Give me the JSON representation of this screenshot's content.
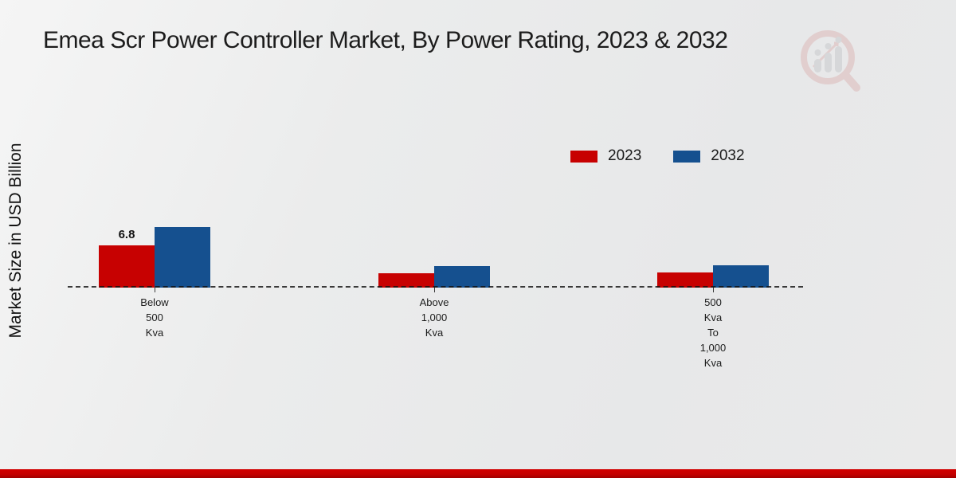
{
  "title": "Emea Scr Power Controller Market, By Power Rating, 2023 & 2032",
  "watermark_icon": "magnifier-bar-chart-logo-icon",
  "chart_data": {
    "type": "bar",
    "title": "Emea Scr Power Controller Market, By Power Rating, 2023 & 2032",
    "xlabel": "",
    "ylabel": "Market Size in USD Billion",
    "categories": [
      "Below 500 Kva",
      "Above 1,000 Kva",
      "500 Kva To 1,000 Kva"
    ],
    "category_display_lines": [
      [
        "Below",
        "500",
        "Kva"
      ],
      [
        "Above",
        "1,000",
        "Kva"
      ],
      [
        "500",
        "Kva",
        "To",
        "1,000",
        "Kva"
      ]
    ],
    "series": [
      {
        "name": "2023",
        "color": "#c70101",
        "values": [
          6.8,
          2.3,
          2.4
        ]
      },
      {
        "name": "2032",
        "color": "#15508f",
        "values": [
          9.7,
          3.5,
          3.6
        ]
      }
    ],
    "annotations": [
      {
        "series": "2023",
        "category": "Below 500 Kva",
        "text": "6.8"
      }
    ],
    "ylim": [
      0,
      12
    ],
    "grid": "off",
    "baseline_style": "dashed",
    "legend_position": "top-right",
    "accent_colors": {
      "red": "#c70101",
      "blue": "#15508f",
      "footer_band": "#c30000"
    }
  }
}
